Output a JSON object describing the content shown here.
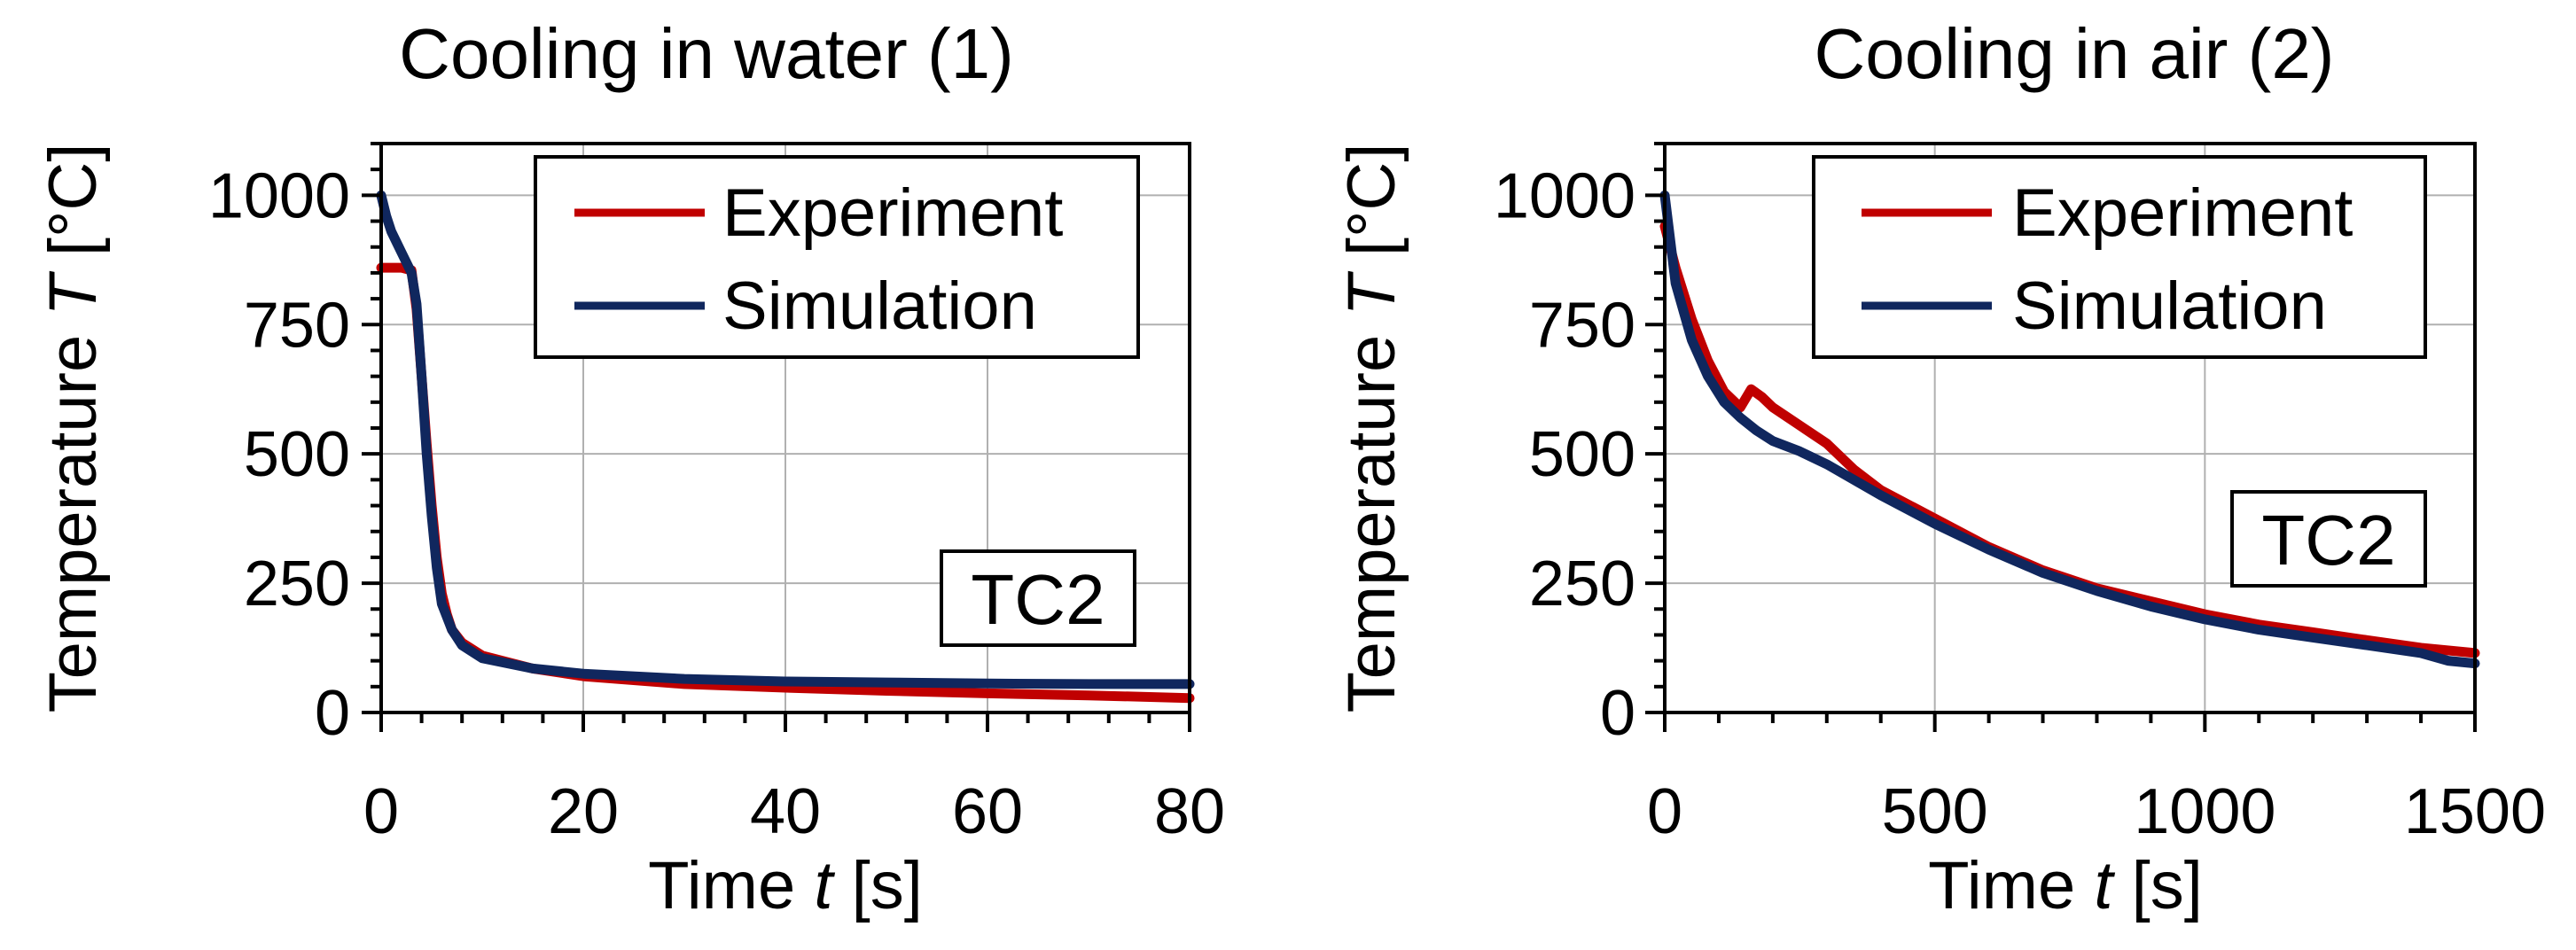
{
  "colors": {
    "experiment": "#c00000",
    "simulation": "#10275e",
    "grid": "#b0b0b0",
    "axis": "#000000"
  },
  "chart_data": [
    {
      "type": "line",
      "title": "Cooling in water (1)",
      "xlabel": "Time",
      "xlabel_symbol": "t",
      "xlabel_unit": "[s]",
      "ylabel": "Temperature",
      "ylabel_symbol": "T",
      "ylabel_unit": "[°C]",
      "xlim": [
        0,
        80
      ],
      "ylim": [
        0,
        1100
      ],
      "xticks": [
        0,
        20,
        40,
        60,
        80
      ],
      "xtick_labels": [
        "0",
        "20",
        "40",
        "60",
        "80"
      ],
      "yticks": [
        0,
        250,
        500,
        750,
        1000
      ],
      "ytick_labels": [
        "0",
        "250",
        "500",
        "750",
        "1000"
      ],
      "grid": true,
      "legend_position": "top-right",
      "annotation": "TC2",
      "annotation_position": "bottom-right",
      "series": [
        {
          "name": "Experiment",
          "color_key": "experiment",
          "x": [
            0,
            1,
            2,
            3,
            3.5,
            4,
            4.5,
            5,
            5.5,
            6,
            6.5,
            7,
            8,
            10,
            15,
            20,
            30,
            40,
            50,
            60,
            70,
            80
          ],
          "y": [
            860,
            860,
            860,
            855,
            780,
            650,
            520,
            400,
            300,
            230,
            190,
            160,
            135,
            110,
            85,
            70,
            55,
            48,
            42,
            37,
            33,
            28
          ]
        },
        {
          "name": "Simulation",
          "color_key": "simulation",
          "x": [
            0,
            0.5,
            1,
            2,
            3,
            3.5,
            4,
            4.5,
            5,
            5.5,
            6,
            7,
            8,
            10,
            15,
            20,
            30,
            40,
            50,
            60,
            70,
            80
          ],
          "y": [
            1000,
            960,
            930,
            890,
            850,
            790,
            650,
            500,
            380,
            280,
            210,
            160,
            130,
            105,
            85,
            75,
            65,
            60,
            58,
            56,
            55,
            55
          ]
        }
      ]
    },
    {
      "type": "line",
      "title": "Cooling in air (2)",
      "xlabel": "Time",
      "xlabel_symbol": "t",
      "xlabel_unit": "[s]",
      "ylabel": "Temperature",
      "ylabel_symbol": "T",
      "ylabel_unit": "[°C]",
      "xlim": [
        0,
        1500
      ],
      "ylim": [
        0,
        1100
      ],
      "xticks": [
        0,
        500,
        1000,
        1500
      ],
      "xtick_labels": [
        "0",
        "500",
        "1000",
        "1500"
      ],
      "yticks": [
        0,
        250,
        500,
        750,
        1000
      ],
      "ytick_labels": [
        "0",
        "250",
        "500",
        "750",
        "1000"
      ],
      "grid": true,
      "legend_position": "top-right",
      "annotation": "TC2",
      "annotation_position": "middle-right",
      "series": [
        {
          "name": "Experiment",
          "color_key": "experiment",
          "x": [
            0,
            20,
            50,
            80,
            110,
            140,
            160,
            180,
            200,
            250,
            300,
            350,
            400,
            500,
            600,
            700,
            800,
            900,
            1000,
            1100,
            1200,
            1300,
            1400,
            1500
          ],
          "y": [
            940,
            860,
            760,
            680,
            620,
            590,
            625,
            610,
            590,
            555,
            520,
            470,
            430,
            375,
            320,
            275,
            240,
            215,
            190,
            170,
            155,
            140,
            125,
            115
          ]
        },
        {
          "name": "Simulation",
          "color_key": "simulation",
          "x": [
            0,
            20,
            50,
            80,
            110,
            140,
            170,
            200,
            250,
            300,
            400,
            500,
            600,
            700,
            800,
            900,
            1000,
            1100,
            1200,
            1300,
            1400,
            1450,
            1500
          ],
          "y": [
            1000,
            830,
            720,
            650,
            600,
            570,
            545,
            525,
            505,
            480,
            420,
            365,
            315,
            270,
            235,
            205,
            180,
            160,
            145,
            130,
            115,
            100,
            95
          ]
        }
      ]
    }
  ]
}
